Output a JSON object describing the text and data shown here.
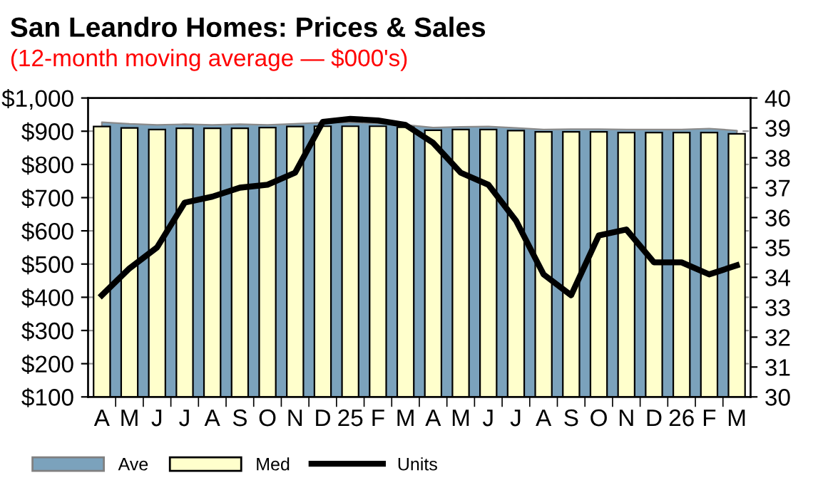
{
  "chart_data": {
    "type": "bar",
    "title": "San Leandro Homes: Prices & Sales",
    "subtitle": "(12-month moving average — $000's)",
    "categories": [
      "A",
      "M",
      "J",
      "J",
      "A",
      "S",
      "O",
      "N",
      "D",
      "25",
      "F",
      "M",
      "A",
      "M",
      "J",
      "J",
      "A",
      "S",
      "O",
      "N",
      "D",
      "26",
      "F",
      "M"
    ],
    "series": [
      {
        "name": "Ave",
        "type": "area",
        "color": "#7ba2bc",
        "values": [
          927,
          922,
          919,
          921,
          919,
          921,
          919,
          922,
          926,
          927,
          924,
          919,
          911,
          913,
          914,
          910,
          905,
          906,
          906,
          905,
          905,
          905,
          908,
          902
        ]
      },
      {
        "name": "Med",
        "color": "#ffffcc",
        "values": [
          914,
          910,
          905,
          909,
          909,
          909,
          911,
          914,
          915,
          915,
          915,
          912,
          903,
          905,
          905,
          902,
          898,
          898,
          898,
          896,
          896,
          896,
          896,
          892
        ]
      },
      {
        "name": "Units",
        "type": "line",
        "axis": "y2",
        "color": "#000000",
        "values": [
          33.4,
          34.3,
          35.0,
          36.5,
          36.7,
          37.0,
          37.1,
          37.5,
          39.2,
          39.3,
          39.25,
          39.1,
          38.5,
          37.5,
          37.1,
          35.9,
          34.1,
          33.4,
          35.4,
          35.6,
          34.5,
          34.5,
          34.1,
          34.4
        ]
      }
    ],
    "ylim": [
      100,
      1000
    ],
    "yticks": [
      {
        "value": 100,
        "label": "$100"
      },
      {
        "value": 200,
        "label": "$200"
      },
      {
        "value": 300,
        "label": "$300"
      },
      {
        "value": 400,
        "label": "$400"
      },
      {
        "value": 500,
        "label": "$500"
      },
      {
        "value": 600,
        "label": "$600"
      },
      {
        "value": 700,
        "label": "$700"
      },
      {
        "value": 800,
        "label": "$800"
      },
      {
        "value": 900,
        "label": "$900"
      },
      {
        "value": 1000,
        "label": "$1,000"
      }
    ],
    "y2lim": [
      30,
      40
    ],
    "y2ticks": [
      30,
      31,
      32,
      33,
      34,
      35,
      36,
      37,
      38,
      39,
      40
    ],
    "grid": "y",
    "legend": "bottom left"
  }
}
